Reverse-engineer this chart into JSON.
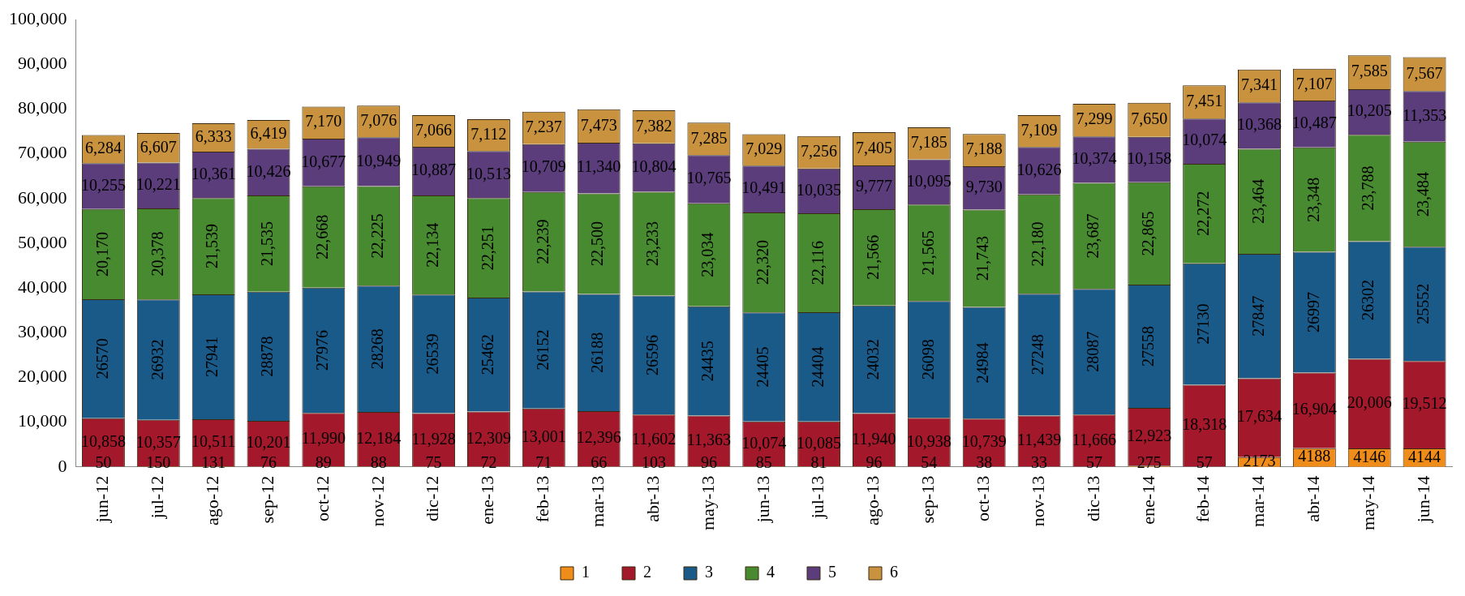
{
  "chart_data": {
    "type": "bar",
    "stacked": true,
    "categories": [
      "jun-12",
      "jul-12",
      "ago-12",
      "sep-12",
      "oct-12",
      "nov-12",
      "dic-12",
      "ene-13",
      "feb-13",
      "mar-13",
      "abr-13",
      "may-13",
      "jun-13",
      "jul-13",
      "ago-13",
      "sep-13",
      "oct-13",
      "nov-13",
      "dic-13",
      "ene-14",
      "feb-14",
      "mar-14",
      "abr-14",
      "may-14",
      "jun-14"
    ],
    "ylim": [
      0,
      100000
    ],
    "yticks": [
      {
        "value": 0,
        "label": "0"
      },
      {
        "value": 10000,
        "label": "10,000"
      },
      {
        "value": 20000,
        "label": "20,000"
      },
      {
        "value": 30000,
        "label": "30,000"
      },
      {
        "value": 40000,
        "label": "40,000"
      },
      {
        "value": 50000,
        "label": "50,000"
      },
      {
        "value": 60000,
        "label": "60,000"
      },
      {
        "value": 70000,
        "label": "70,000"
      },
      {
        "value": 80000,
        "label": "80,000"
      },
      {
        "value": 90000,
        "label": "90,000"
      },
      {
        "value": 100000,
        "label": "100,000"
      }
    ],
    "grid": false,
    "legend": "bottom",
    "series": [
      {
        "name": "1",
        "color": "#f08c1a",
        "values": [
          50,
          150,
          131,
          76,
          89,
          88,
          75,
          72,
          71,
          66,
          103,
          96,
          85,
          81,
          96,
          54,
          38,
          33,
          57,
          275,
          57,
          2173,
          4188,
          4146,
          4144
        ],
        "value_labels": [
          "50",
          "150",
          "131",
          "76",
          "89",
          "88",
          "75",
          "72",
          "71",
          "66",
          "103",
          "96",
          "85",
          "81",
          "96",
          "54",
          "38",
          "33",
          "57",
          "275",
          "57",
          "2173",
          "4188",
          "4146",
          "4144"
        ]
      },
      {
        "name": "2",
        "color": "#a3192b",
        "values": [
          10858,
          10357,
          10511,
          10201,
          11990,
          12184,
          11928,
          12309,
          13001,
          12396,
          11602,
          11363,
          10074,
          10085,
          11940,
          10938,
          10739,
          11439,
          11666,
          12923,
          18318,
          17634,
          16904,
          20006,
          19512
        ],
        "value_labels": [
          "10,858",
          "10,357",
          "10,511",
          "10,201",
          "11,990",
          "12,184",
          "11,928",
          "12,309",
          "13,001",
          "12,396",
          "11,602",
          "11,363",
          "10,074",
          "10,085",
          "11,940",
          "10,938",
          "10,739",
          "11,439",
          "11,666",
          "12,923",
          "18,318",
          "17,634",
          "16,904",
          "20,006",
          "19,512"
        ]
      },
      {
        "name": "3",
        "color": "#1a5a88",
        "values": [
          26570,
          26932,
          27941,
          28878,
          27976,
          28268,
          26539,
          25462,
          26152,
          26188,
          26596,
          24435,
          24405,
          24404,
          24032,
          26098,
          24984,
          27248,
          28087,
          27558,
          27130,
          27847,
          26997,
          26302,
          25552
        ],
        "value_labels": [
          "26570",
          "26932",
          "27941",
          "28878",
          "27976",
          "28268",
          "26539",
          "25462",
          "26152",
          "26188",
          "26596",
          "24435",
          "24405",
          "24404",
          "24032",
          "26098",
          "24984",
          "27248",
          "28087",
          "27558",
          "27130",
          "27847",
          "26997",
          "26302",
          "25552"
        ]
      },
      {
        "name": "4",
        "color": "#478a30",
        "values": [
          20170,
          20378,
          21539,
          21535,
          22668,
          22225,
          22134,
          22251,
          22239,
          22500,
          23233,
          23034,
          22320,
          22116,
          21566,
          21565,
          21743,
          22180,
          23687,
          22865,
          22272,
          23464,
          23348,
          23788,
          23484
        ],
        "value_labels": [
          "20,170",
          "20,378",
          "21,539",
          "21,535",
          "22,668",
          "22,225",
          "22,134",
          "22,251",
          "22,239",
          "22,500",
          "23,233",
          "23,034",
          "22,320",
          "22,116",
          "21,566",
          "21,565",
          "21,743",
          "22,180",
          "23,687",
          "22,865",
          "22,272",
          "23,464",
          "23,348",
          "23,788",
          "23,484"
        ]
      },
      {
        "name": "5",
        "color": "#5a3d7a",
        "values": [
          10255,
          10221,
          10361,
          10426,
          10677,
          10949,
          10887,
          10513,
          10709,
          11340,
          10804,
          10765,
          10491,
          10035,
          9777,
          10095,
          9730,
          10626,
          10374,
          10158,
          10074,
          10368,
          10487,
          10205,
          11353
        ],
        "value_labels": [
          "10,255",
          "10,221",
          "10,361",
          "10,426",
          "10,677",
          "10,949",
          "10,887",
          "10,513",
          "10,709",
          "11,340",
          "10,804",
          "10,765",
          "10,491",
          "10,035",
          "9,777",
          "10,095",
          "9,730",
          "10,626",
          "10,374",
          "10,158",
          "10,074",
          "10,368",
          "10,487",
          "10,205",
          "11,353"
        ]
      },
      {
        "name": "6",
        "color": "#c8923e",
        "values": [
          6284,
          6607,
          6333,
          6419,
          7170,
          7076,
          7066,
          7112,
          7237,
          7473,
          7382,
          7285,
          7029,
          7256,
          7405,
          7185,
          7188,
          7109,
          7299,
          7650,
          7451,
          7341,
          7107,
          7585,
          7567
        ],
        "value_labels": [
          "6,284",
          "6,607",
          "6,333",
          "6,419",
          "7,170",
          "7,076",
          "7,066",
          "7,112",
          "7,237",
          "7,473",
          "7,382",
          "7,285",
          "7,029",
          "7,256",
          "7,405",
          "7,185",
          "7,188",
          "7,109",
          "7,299",
          "7,650",
          "7,451",
          "7,341",
          "7,107",
          "7,585",
          "7,567"
        ]
      }
    ]
  }
}
